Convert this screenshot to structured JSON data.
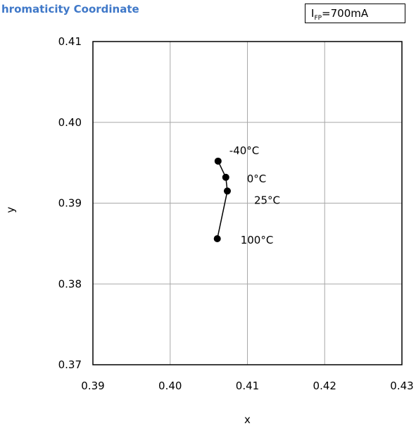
{
  "chart_data": {
    "type": "scatter",
    "title": "hromaticity Coordinate",
    "condition": {
      "symbol": "I",
      "subscript": "FP",
      "value": "=700mA"
    },
    "xlabel": "x",
    "ylabel": "y",
    "xlim": [
      0.39,
      0.43
    ],
    "ylim": [
      0.37,
      0.41
    ],
    "xticks": [
      "0.39",
      "0.40",
      "0.41",
      "0.42",
      "0.43"
    ],
    "yticks": [
      "0.41",
      "0.40",
      "0.39",
      "0.38",
      "0.37"
    ],
    "grid": true,
    "line_color": "#000000",
    "points": [
      {
        "x": 0.4062,
        "y": 0.3952,
        "label": "-40°C"
      },
      {
        "x": 0.4072,
        "y": 0.3932,
        "label": "0°C"
      },
      {
        "x": 0.4074,
        "y": 0.3915,
        "label": "25°C"
      },
      {
        "x": 0.4061,
        "y": 0.3856,
        "label": "100°C"
      }
    ]
  }
}
